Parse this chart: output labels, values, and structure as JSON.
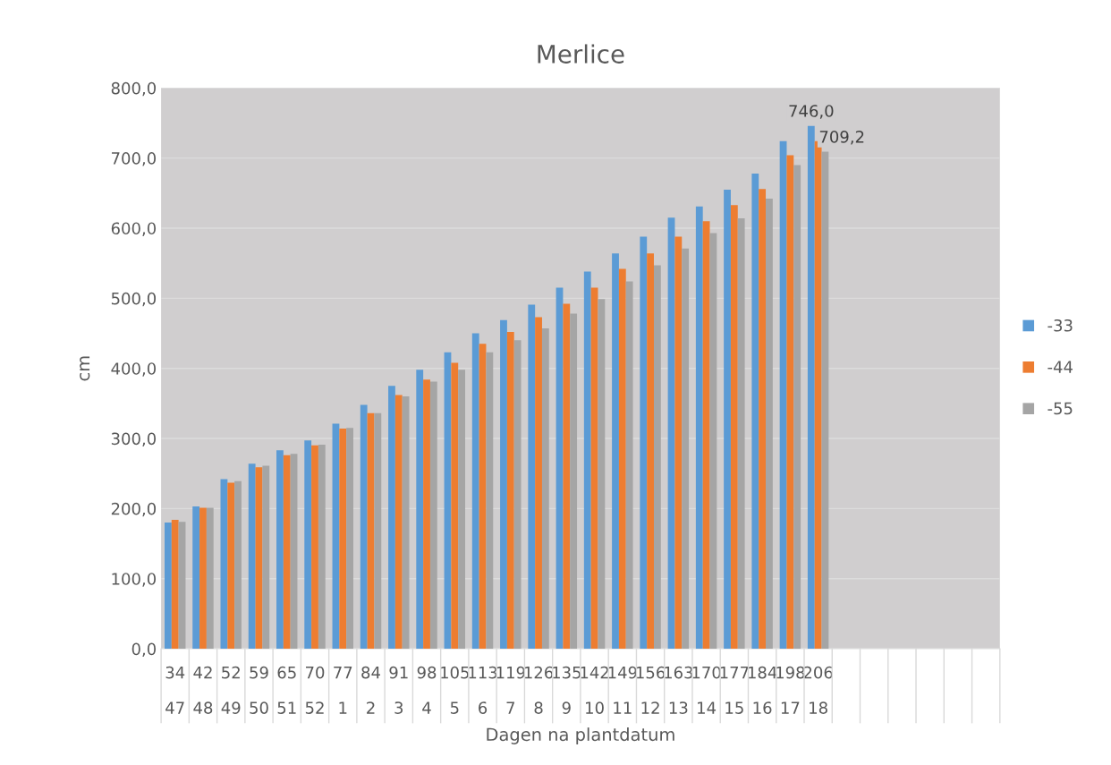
{
  "chart_data": {
    "type": "bar",
    "title": "Merlice",
    "xlabel": "Dagen na plantdatum",
    "ylabel": "cm",
    "categories": [
      "34\n47",
      "42\n48",
      "52\n49",
      "59\n50",
      "65\n51",
      "70\n52",
      "77\n1",
      "84\n2",
      "91\n3",
      "98\n4",
      "105\n5",
      "113\n6",
      "119\n7",
      "126\n8",
      "135\n9",
      "142\n10",
      "149\n11",
      "156\n12",
      "163\n13",
      "170\n14",
      "177\n15",
      "184\n16",
      "198\n17",
      "206\n18",
      null,
      null,
      null,
      null,
      null,
      null
    ],
    "series": [
      {
        "name": "-33",
        "color": "#5b9bd5",
        "values": [
          180,
          203,
          242,
          264,
          283,
          297,
          321,
          348,
          375,
          398,
          423,
          450,
          469,
          491,
          515,
          538,
          564,
          588,
          615,
          631,
          655,
          678,
          724,
          746.0,
          null,
          null,
          null,
          null,
          null,
          null
        ],
        "value_labels": [
          null,
          null,
          null,
          null,
          null,
          null,
          null,
          null,
          null,
          null,
          null,
          null,
          null,
          null,
          null,
          null,
          null,
          null,
          null,
          null,
          null,
          null,
          null,
          "746,0",
          null,
          null,
          null,
          null,
          null,
          null
        ]
      },
      {
        "name": "-44",
        "color": "#ed7d31",
        "values": [
          184,
          201,
          237,
          259,
          276,
          290,
          314,
          336,
          362,
          384,
          408,
          435,
          452,
          473,
          492,
          515,
          542,
          564,
          588,
          610,
          633,
          656,
          704,
          724,
          null,
          null,
          null,
          null,
          null,
          null
        ]
      },
      {
        "name": "-55",
        "color": "#a5a5a5",
        "values": [
          181,
          201,
          239,
          261,
          278,
          291,
          315,
          336,
          360,
          381,
          398,
          423,
          440,
          457,
          478,
          499,
          524,
          547,
          571,
          593,
          614,
          642,
          690,
          709.2,
          null,
          null,
          null,
          null,
          null,
          null
        ],
        "value_labels": [
          null,
          null,
          null,
          null,
          null,
          null,
          null,
          null,
          null,
          null,
          null,
          null,
          null,
          null,
          null,
          null,
          null,
          null,
          null,
          null,
          null,
          null,
          null,
          "709,2",
          null,
          null,
          null,
          null,
          null,
          null
        ]
      }
    ],
    "ylim": [
      0,
      800
    ],
    "yticks": [
      {
        "value": 0,
        "label": "0,0"
      },
      {
        "value": 100,
        "label": "100,0"
      },
      {
        "value": 200,
        "label": "200,0"
      },
      {
        "value": 300,
        "label": "300,0"
      },
      {
        "value": 400,
        "label": "400,0"
      },
      {
        "value": 500,
        "label": "500,0"
      },
      {
        "value": 600,
        "label": "600,0"
      },
      {
        "value": 700,
        "label": "700,0"
      },
      {
        "value": 800,
        "label": "800,0"
      }
    ],
    "grid": "y",
    "legend": "right"
  }
}
